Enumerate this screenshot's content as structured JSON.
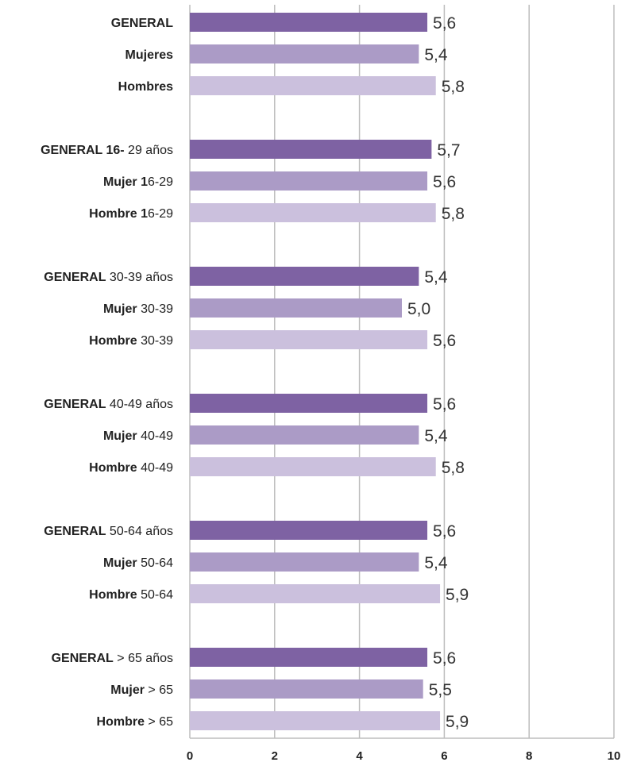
{
  "chart_data": {
    "type": "bar",
    "orientation": "horizontal",
    "xlim": [
      0,
      10
    ],
    "xticks": [
      "0",
      "2",
      "4",
      "6",
      "8",
      "10"
    ],
    "grid": true,
    "colors": {
      "general": "#7e62a3",
      "mujer": "#ab9bc6",
      "hombre": "#cbc0dd"
    },
    "categories": [
      {
        "label_bold": "GENERAL",
        "label_rest": "",
        "value": 5.6,
        "value_label": "5,6",
        "kind": "general"
      },
      {
        "label_bold": "Mujeres",
        "label_rest": "",
        "value": 5.4,
        "value_label": "5,4",
        "kind": "mujer"
      },
      {
        "label_bold": "Hombres",
        "label_rest": "",
        "value": 5.8,
        "value_label": "5,8",
        "kind": "hombre"
      },
      {
        "label_bold": "GENERAL 16-",
        "label_rest": " 29 años",
        "value": 5.7,
        "value_label": "5,7",
        "kind": "general"
      },
      {
        "label_bold": "Mujer 1",
        "label_rest": "6-29",
        "value": 5.6,
        "value_label": "5,6",
        "kind": "mujer"
      },
      {
        "label_bold": "Hombre 1",
        "label_rest": "6-29",
        "value": 5.8,
        "value_label": "5,8",
        "kind": "hombre"
      },
      {
        "label_bold": "GENERAL",
        "label_rest": " 30-39 años",
        "value": 5.4,
        "value_label": "5,4",
        "kind": "general"
      },
      {
        "label_bold": "Mujer",
        "label_rest": " 30-39",
        "value": 5.0,
        "value_label": "5,0",
        "kind": "mujer"
      },
      {
        "label_bold": "Hombre",
        "label_rest": " 30-39",
        "value": 5.6,
        "value_label": "5,6",
        "kind": "hombre"
      },
      {
        "label_bold": "GENERAL",
        "label_rest": " 40-49 años",
        "value": 5.6,
        "value_label": "5,6",
        "kind": "general"
      },
      {
        "label_bold": "Mujer",
        "label_rest": " 40-49",
        "value": 5.4,
        "value_label": "5,4",
        "kind": "mujer"
      },
      {
        "label_bold": "Hombre",
        "label_rest": " 40-49",
        "value": 5.8,
        "value_label": "5,8",
        "kind": "hombre"
      },
      {
        "label_bold": "GENERAL",
        "label_rest": " 50-64 años",
        "value": 5.6,
        "value_label": "5,6",
        "kind": "general"
      },
      {
        "label_bold": "Mujer",
        "label_rest": " 50-64",
        "value": 5.4,
        "value_label": "5,4",
        "kind": "mujer"
      },
      {
        "label_bold": "Hombre",
        "label_rest": " 50-64",
        "value": 5.9,
        "value_label": "5,9",
        "kind": "hombre"
      },
      {
        "label_bold": "GENERAL",
        "label_rest": " > 65 años",
        "value": 5.6,
        "value_label": "5,6",
        "kind": "general"
      },
      {
        "label_bold": "Mujer",
        "label_rest": " > 65",
        "value": 5.5,
        "value_label": "5,5",
        "kind": "mujer"
      },
      {
        "label_bold": "Hombre",
        "label_rest": " > 65",
        "value": 5.9,
        "value_label": "5,9",
        "kind": "hombre"
      }
    ]
  }
}
